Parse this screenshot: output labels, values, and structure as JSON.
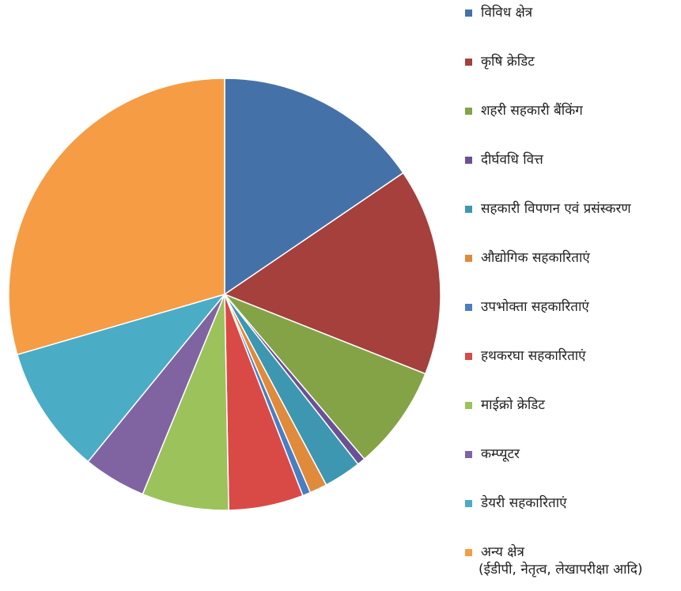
{
  "chart_data": {
    "type": "pie",
    "legend_position": "right",
    "slices": [
      {
        "label": "विविध क्षेत्र",
        "value": 15.5,
        "color": "#4472a8"
      },
      {
        "label": "कृषि क्रेडिट",
        "value": 15.5,
        "color": "#a5403d"
      },
      {
        "label": "शहरी सहकारी बैंकिंग",
        "value": 7.8,
        "color": "#84a346"
      },
      {
        "label": "दीर्घवधि वित्त",
        "value": 0.6,
        "color": "#6a5195"
      },
      {
        "label": "सहकारी विपणन एवं प्रसंस्करण",
        "value": 2.8,
        "color": "#3d97b0"
      },
      {
        "label": "औद्योगिक सहकारिताएं",
        "value": 1.3,
        "color": "#e08a3c"
      },
      {
        "label": "उपभोक्ता सहकारिताएं",
        "value": 0.6,
        "color": "#4a7ec2"
      },
      {
        "label": "हथकरघा सहकारिताएं",
        "value": 5.6,
        "color": "#d94a47"
      },
      {
        "label": "माईक्रो क्रेडिट",
        "value": 6.5,
        "color": "#9cc25b"
      },
      {
        "label": "कम्प्यूटर",
        "value": 4.7,
        "color": "#8064a2"
      },
      {
        "label": "डेयरी सहकारिताएं",
        "value": 9.6,
        "color": "#4bacc6"
      },
      {
        "label": "अन्य क्षेत्र",
        "sublabel": "(ईडीपी, नेतृत्व, लेखापरीक्षा आदि)",
        "value": 29.5,
        "color": "#f59c45"
      }
    ]
  }
}
